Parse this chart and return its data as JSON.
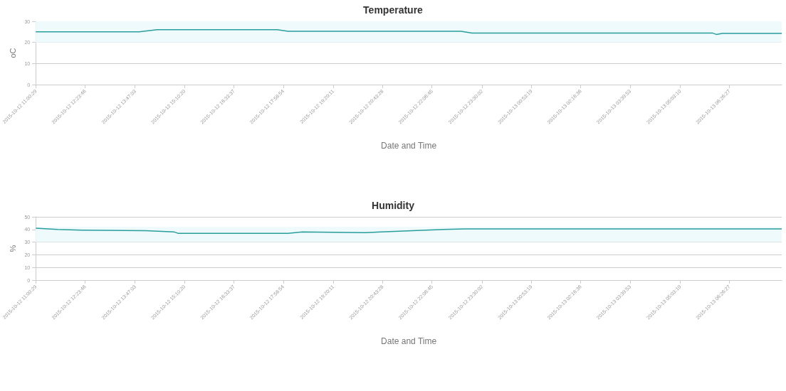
{
  "chart_data": [
    {
      "type": "line",
      "title": "Temperature",
      "xlabel": "Date and Time",
      "ylabel": "oC",
      "x": [
        "2015-10-12T11:00",
        "2015-10-12T13:54",
        "2015-10-12T14:24",
        "2015-10-12T17:46",
        "2015-10-12T18:04",
        "2015-10-12T22:55",
        "2015-10-12T23:13",
        "2015-10-13T05:58",
        "2015-10-13T06:04",
        "2015-10-13T06:14",
        "2015-10-13T07:54"
      ],
      "series": [
        {
          "color": "#2a9d9d",
          "values": [
            25,
            25,
            26,
            26,
            25.3,
            25.3,
            24.4,
            24.4,
            23.8,
            24.3,
            24.3
          ]
        }
      ],
      "xlim": [
        "2015-10-12T11:00",
        "2015-10-13T07:54"
      ],
      "xticks": [
        {
          "value": "2015-10-12T11:00",
          "label": "2015-10-12 11:00:29"
        },
        {
          "value": "2015-10-12T12:23",
          "label": "2015-10-12 12:23:46"
        },
        {
          "value": "2015-10-12T13:47",
          "label": "2015-10-12 13:47:03"
        },
        {
          "value": "2015-10-12T15:10",
          "label": "2015-10-12 15:10:20"
        },
        {
          "value": "2015-10-12T16:33",
          "label": "2015-10-12 16:33:37"
        },
        {
          "value": "2015-10-12T17:56",
          "label": "2015-10-12 17:56:54"
        },
        {
          "value": "2015-10-12T19:20",
          "label": "2015-10-12 19:20:11"
        },
        {
          "value": "2015-10-12T20:43",
          "label": "2015-10-12 20:43:28"
        },
        {
          "value": "2015-10-12T22:06",
          "label": "2015-10-12 22:06:45"
        },
        {
          "value": "2015-10-12T23:30",
          "label": "2015-10-12 23:30:02"
        },
        {
          "value": "2015-10-13T00:53",
          "label": "2015-10-13 00:53:19"
        },
        {
          "value": "2015-10-13T02:16",
          "label": "2015-10-13 02:16:36"
        },
        {
          "value": "2015-10-13T03:39",
          "label": "2015-10-13 03:39:53"
        },
        {
          "value": "2015-10-13T05:03",
          "label": "2015-10-13 05:03:10"
        },
        {
          "value": "2015-10-13T06:26",
          "label": "2015-10-13 06:26:27"
        }
      ],
      "ylim": [
        0,
        30
      ],
      "yticks": [
        0,
        10,
        20,
        30
      ],
      "grid": "y",
      "marker": "none",
      "line_style": "solid",
      "bands": [
        {
          "axis": "y",
          "from": 20,
          "to": 30,
          "color": "#eefafc"
        }
      ]
    },
    {
      "type": "line",
      "title": "Humidity",
      "xlabel": "Date and Time",
      "ylabel": "%",
      "x": [
        "2015-10-12T11:00",
        "2015-10-12T11:37",
        "2015-10-12T12:18",
        "2015-10-12T14:05",
        "2015-10-12T14:53",
        "2015-10-12T14:59",
        "2015-10-12T18:04",
        "2015-10-12T18:28",
        "2015-10-12T20:15",
        "2015-10-12T20:40",
        "2015-10-12T22:26",
        "2015-10-12T23:01",
        "2015-10-13T07:54"
      ],
      "series": [
        {
          "color": "#2a9d9d",
          "values": [
            41,
            40,
            39.5,
            39,
            38,
            37,
            37,
            38,
            37.5,
            38,
            40,
            40.5,
            40.5
          ]
        }
      ],
      "xlim": [
        "2015-10-12T11:00",
        "2015-10-13T07:54"
      ],
      "xticks": [
        {
          "value": "2015-10-12T11:00",
          "label": "2015-10-12 11:00:29"
        },
        {
          "value": "2015-10-12T12:23",
          "label": "2015-10-12 12:23:46"
        },
        {
          "value": "2015-10-12T13:47",
          "label": "2015-10-12 13:47:03"
        },
        {
          "value": "2015-10-12T15:10",
          "label": "2015-10-12 15:10:20"
        },
        {
          "value": "2015-10-12T16:33",
          "label": "2015-10-12 16:33:37"
        },
        {
          "value": "2015-10-12T17:56",
          "label": "2015-10-12 17:56:54"
        },
        {
          "value": "2015-10-12T19:20",
          "label": "2015-10-12 19:20:11"
        },
        {
          "value": "2015-10-12T20:43",
          "label": "2015-10-12 20:43:28"
        },
        {
          "value": "2015-10-12T22:06",
          "label": "2015-10-12 22:06:45"
        },
        {
          "value": "2015-10-12T23:30",
          "label": "2015-10-12 23:30:02"
        },
        {
          "value": "2015-10-13T00:53",
          "label": "2015-10-13 00:53:19"
        },
        {
          "value": "2015-10-13T02:16",
          "label": "2015-10-13 02:16:36"
        },
        {
          "value": "2015-10-13T03:39",
          "label": "2015-10-13 03:39:53"
        },
        {
          "value": "2015-10-13T05:03",
          "label": "2015-10-13 05:03:10"
        },
        {
          "value": "2015-10-13T06:26",
          "label": "2015-10-13 06:26:27"
        }
      ],
      "ylim": [
        0,
        50
      ],
      "yticks": [
        0,
        10,
        20,
        30,
        40,
        50
      ],
      "grid": "y",
      "marker": "none",
      "line_style": "solid",
      "bands": [
        {
          "axis": "y",
          "from": 30,
          "to": 42,
          "color": "#eefafc"
        }
      ]
    }
  ]
}
